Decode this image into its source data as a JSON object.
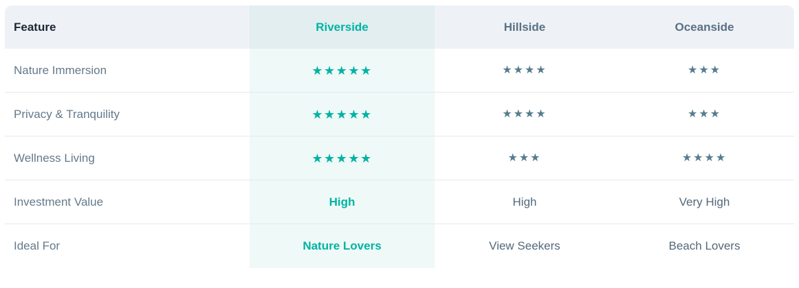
{
  "colors": {
    "accent_teal": "#00b3a4",
    "star_gray": "#567c8d",
    "header_bg": "#eef2f7",
    "riverside_header_bg": "#e2eeef",
    "riverside_column_bg": "#eff9f7",
    "divider": "#e4e9f0",
    "feature_header_text": "#1b2733",
    "row_label_text": "#64798a"
  },
  "header": {
    "feature": "Feature",
    "riverside": "Riverside",
    "hillside": "Hillside",
    "oceanside": "Oceanside"
  },
  "rows": [
    {
      "feature": "Nature Immersion",
      "riverside": "★★★★★",
      "hillside": "★★★★",
      "oceanside": "★★★",
      "riverside_rating": 5,
      "hillside_rating": 4,
      "oceanside_rating": 3
    },
    {
      "feature": "Privacy & Tranquility",
      "riverside": "★★★★★",
      "hillside": "★★★★",
      "oceanside": "★★★",
      "riverside_rating": 5,
      "hillside_rating": 4,
      "oceanside_rating": 3
    },
    {
      "feature": "Wellness Living",
      "riverside": "★★★★★",
      "hillside": "★★★",
      "oceanside": "★★★★",
      "riverside_rating": 5,
      "hillside_rating": 3,
      "oceanside_rating": 4
    },
    {
      "feature": "Investment Value",
      "riverside": "High",
      "hillside": "High",
      "oceanside": "Very High"
    },
    {
      "feature": "Ideal For",
      "riverside": "Nature Lovers",
      "hillside": "View Seekers",
      "oceanside": "Beach Lovers"
    }
  ]
}
